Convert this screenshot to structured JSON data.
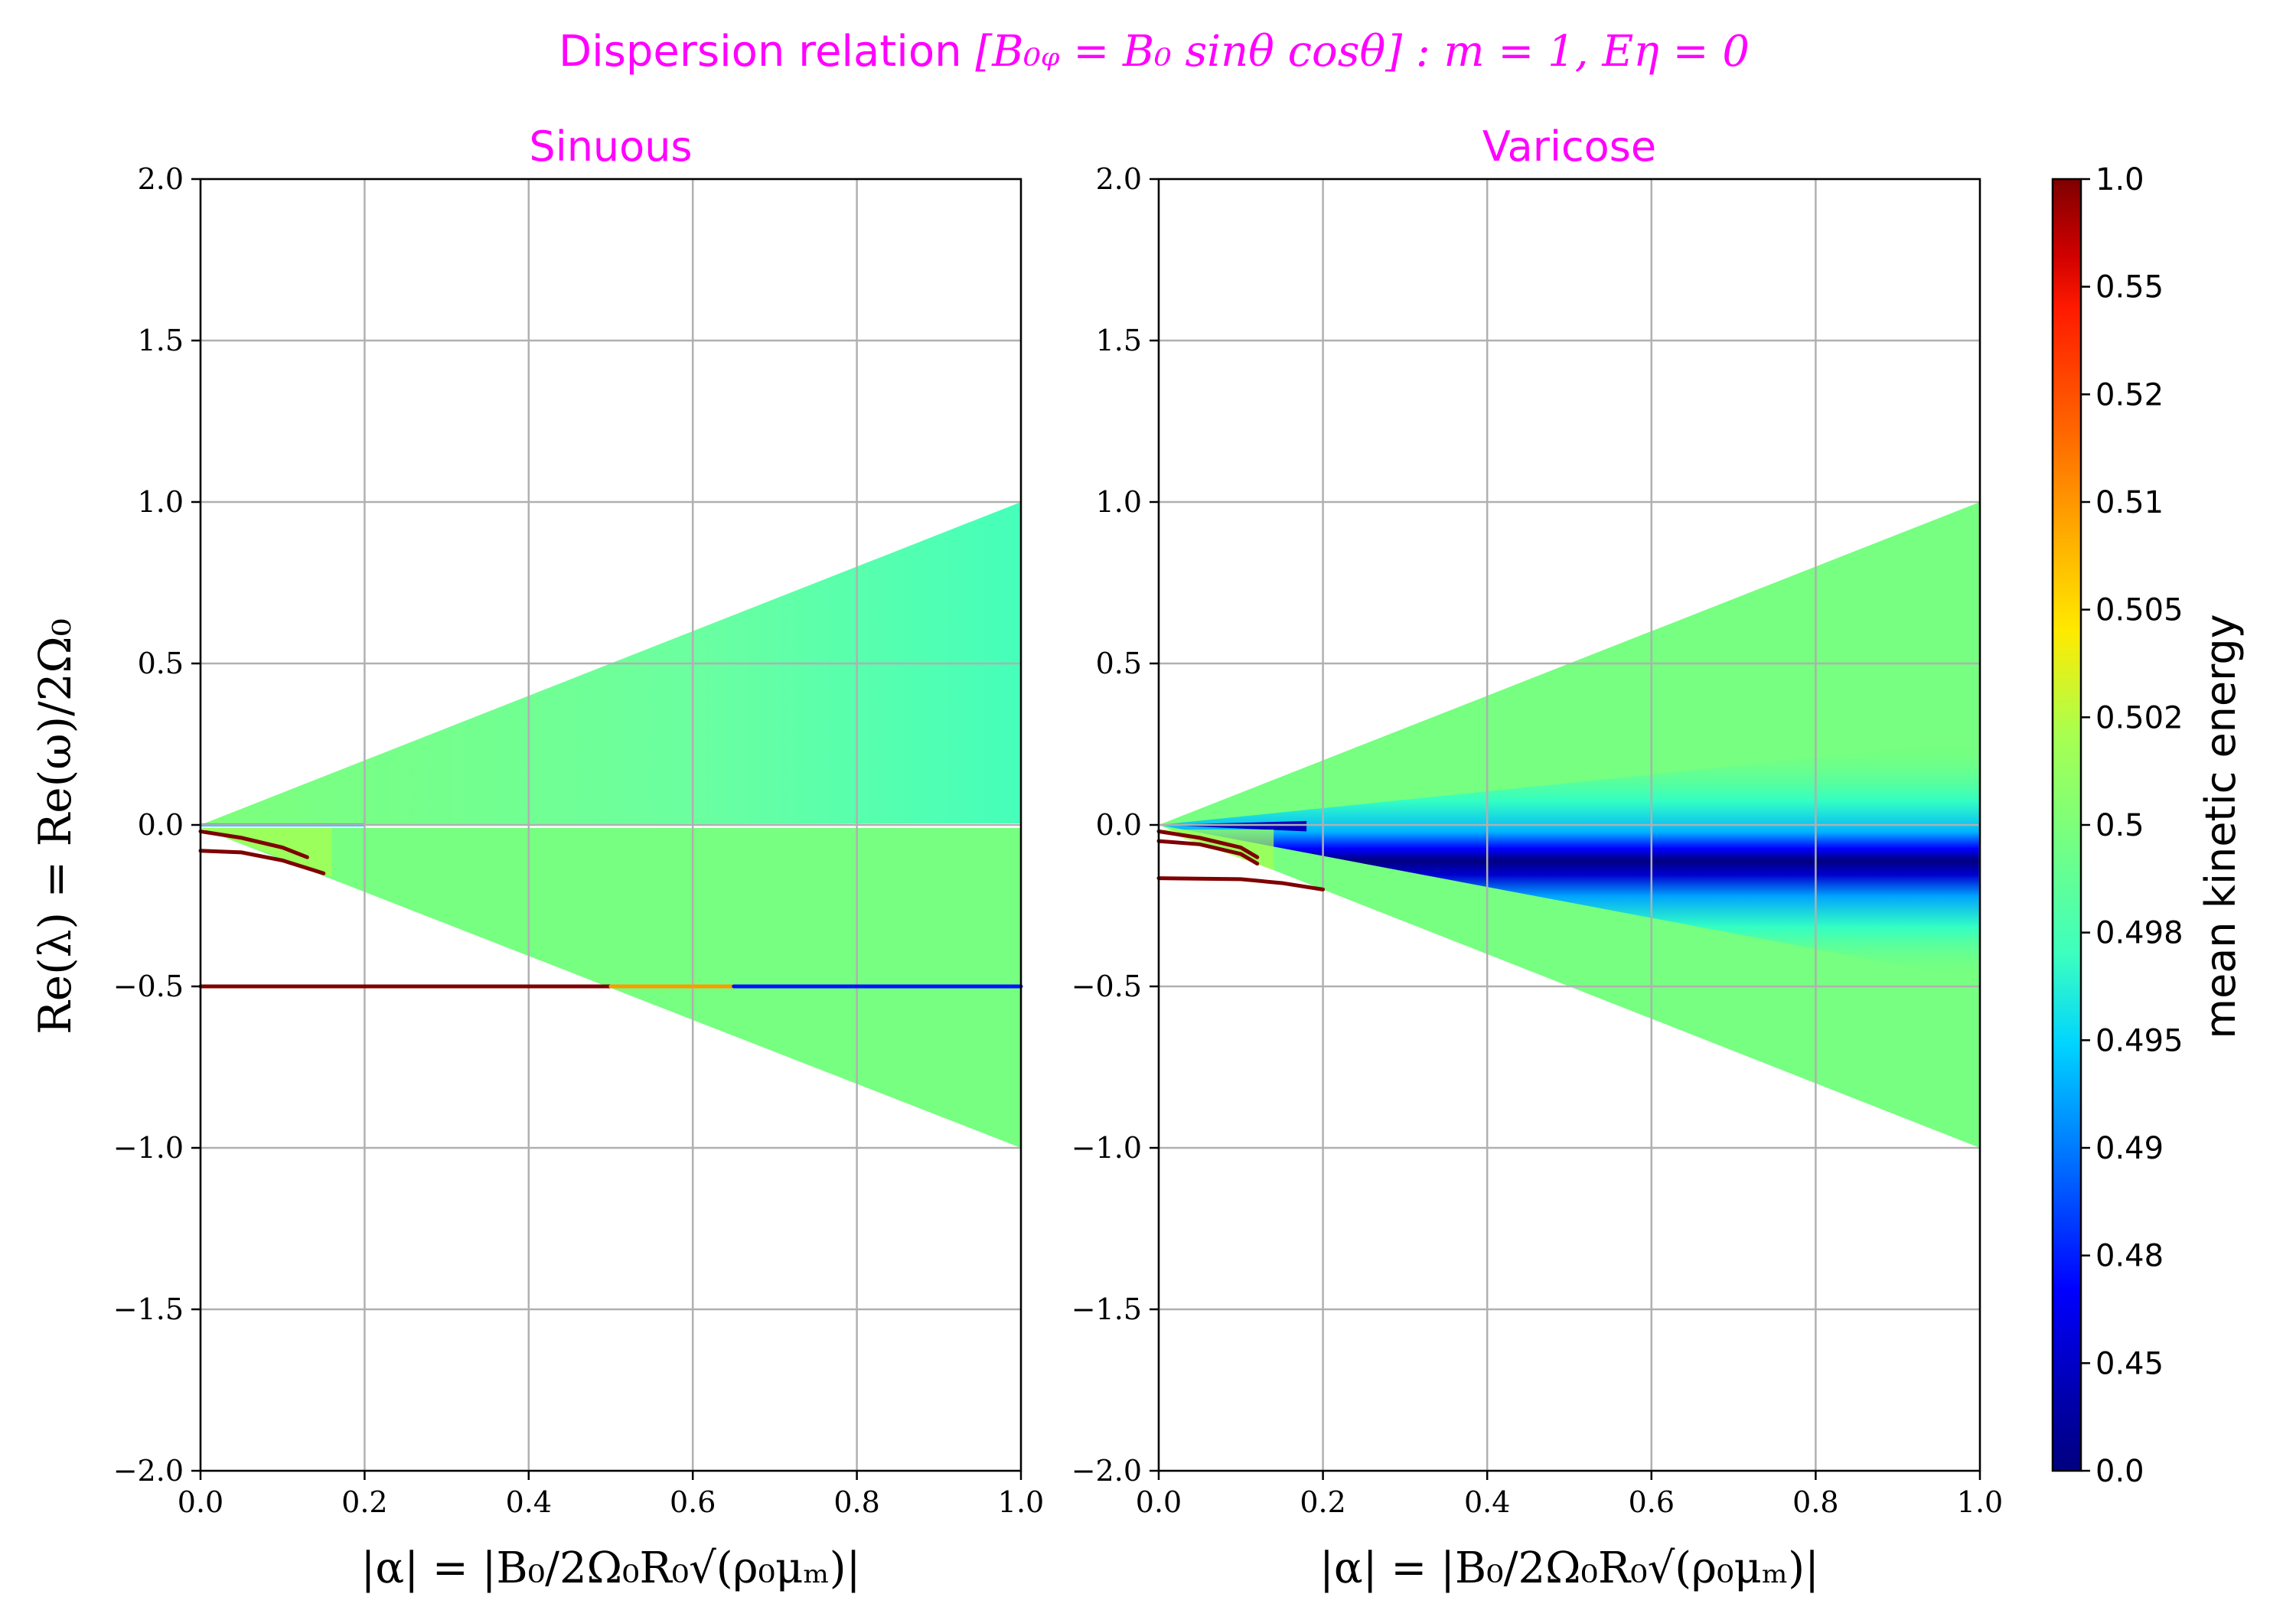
{
  "title": {
    "prefix": "Dispersion relation ",
    "math": "[B₀ᵩ = B₀ sinθ cosθ] : m = 1, Eη = 0",
    "color": "#ff00ff"
  },
  "chart_data": [
    {
      "type": "heatmap",
      "panel_title": "Sinuous",
      "xlabel": "|α| = |B₀/2Ω₀R₀√(ρ₀μₘ)|",
      "ylabel": "Re(λ) = Re(ω)/2Ω₀",
      "xlim": [
        0.0,
        1.0
      ],
      "ylim": [
        -2.0,
        2.0
      ],
      "xticks": [
        "0.0",
        "0.2",
        "0.4",
        "0.6",
        "0.8",
        "1.0"
      ],
      "yticks": [
        "2.0",
        "1.5",
        "1.0",
        "0.5",
        "0.0",
        "−0.5",
        "−1.0",
        "−1.5",
        "−2.0"
      ],
      "grid": true,
      "continuum_wedge": {
        "upper": [
          [
            0,
            0
          ],
          [
            1.0,
            1.0
          ]
        ],
        "lower": [
          [
            0,
            0
          ],
          [
            1.0,
            -1.0
          ]
        ],
        "energy": 0.498
      },
      "discrete_branches": [
        {
          "points": [
            [
              0.0,
              -0.5
            ],
            [
              0.5,
              -0.5
            ]
          ],
          "energy": 1.0
        },
        {
          "points": [
            [
              0.5,
              -0.5
            ],
            [
              0.65,
              -0.5
            ]
          ],
          "energy": 0.51
        },
        {
          "points": [
            [
              0.65,
              -0.5
            ],
            [
              1.0,
              -0.5
            ]
          ],
          "energy": 0.48
        },
        {
          "points": [
            [
              0.0,
              -0.08
            ],
            [
              0.05,
              -0.085
            ],
            [
              0.1,
              -0.11
            ],
            [
              0.15,
              -0.15
            ]
          ],
          "energy": 1.0
        },
        {
          "points": [
            [
              0.0,
              -0.02
            ],
            [
              0.05,
              -0.04
            ],
            [
              0.1,
              -0.07
            ],
            [
              0.13,
              -0.1
            ]
          ],
          "energy": 1.0
        }
      ]
    },
    {
      "type": "heatmap",
      "panel_title": "Varicose",
      "xlabel": "|α| = |B₀/2Ω₀R₀√(ρ₀μₘ)|",
      "ylabel": "",
      "xlim": [
        0.0,
        1.0
      ],
      "ylim": [
        -2.0,
        2.0
      ],
      "xticks": [
        "0.0",
        "0.2",
        "0.4",
        "0.6",
        "0.8",
        "1.0"
      ],
      "yticks": [
        "2.0",
        "1.5",
        "1.0",
        "0.5",
        "0.0",
        "−0.5",
        "−1.0",
        "−1.5",
        "−2.0"
      ],
      "grid": true,
      "continuum_wedge": {
        "upper": [
          [
            0,
            0
          ],
          [
            1.0,
            1.0
          ]
        ],
        "lower": [
          [
            0,
            0
          ],
          [
            1.0,
            -1.0
          ]
        ],
        "energy": 0.498,
        "center_energy": 0.0
      },
      "discrete_branches": [
        {
          "points": [
            [
              0.0,
              -0.165
            ],
            [
              0.1,
              -0.168
            ],
            [
              0.15,
              -0.18
            ],
            [
              0.2,
              -0.2
            ]
          ],
          "energy": 1.0
        },
        {
          "points": [
            [
              0.0,
              -0.05
            ],
            [
              0.05,
              -0.06
            ],
            [
              0.1,
              -0.09
            ],
            [
              0.12,
              -0.12
            ]
          ],
          "energy": 1.0
        },
        {
          "points": [
            [
              0.0,
              -0.02
            ],
            [
              0.05,
              -0.04
            ],
            [
              0.1,
              -0.07
            ],
            [
              0.12,
              -0.1
            ]
          ],
          "energy": 1.0
        }
      ]
    }
  ],
  "colorbar": {
    "label": "mean kinetic energy",
    "ticks": [
      "1.0",
      "0.55",
      "0.52",
      "0.51",
      "0.505",
      "0.502",
      "0.5",
      "0.498",
      "0.495",
      "0.49",
      "0.48",
      "0.45",
      "0.0"
    ],
    "colors": [
      "#7f0000",
      "#ff0000",
      "#ff4500",
      "#ff9a00",
      "#ffe600",
      "#b7ff40",
      "#7dff7a",
      "#76ff80",
      "#2bffca",
      "#00a4ff",
      "#0010ff",
      "#0000b5",
      "#00007f"
    ]
  }
}
